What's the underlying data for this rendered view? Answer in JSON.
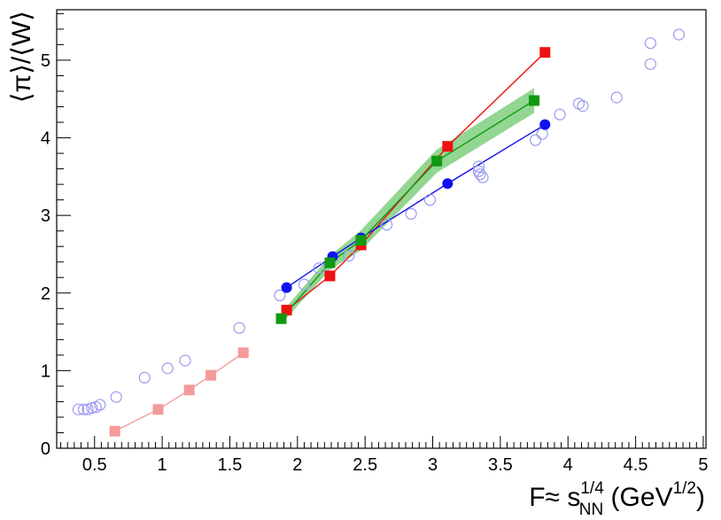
{
  "chart_data": {
    "type": "scatter",
    "xlabel": {
      "main": "F≈ s",
      "sup": "1/4",
      "sub": "NN",
      "unit_prefix": " (GeV",
      "unit_sup": "1/2",
      "unit_suffix": ")"
    },
    "ylabel": "⟨π⟩/⟨W⟩",
    "xlim": [
      0.22,
      5.02
    ],
    "ylim": [
      0,
      5.65
    ],
    "x_ticks": [
      "0.5",
      "1",
      "1.5",
      "2",
      "2.5",
      "3",
      "3.5",
      "4",
      "4.5",
      "5"
    ],
    "y_ticks": [
      "0",
      "1",
      "2",
      "3",
      "4",
      "5"
    ],
    "grid": false,
    "series": [
      {
        "marker": "open-circle",
        "color": "#9a9af0",
        "line": false,
        "points": [
          {
            "x": 0.38,
            "y": 0.5
          },
          {
            "x": 0.42,
            "y": 0.5
          },
          {
            "x": 0.45,
            "y": 0.5
          },
          {
            "x": 0.48,
            "y": 0.52
          },
          {
            "x": 0.51,
            "y": 0.53
          },
          {
            "x": 0.54,
            "y": 0.56
          },
          {
            "x": 0.66,
            "y": 0.66
          },
          {
            "x": 0.87,
            "y": 0.91
          },
          {
            "x": 1.04,
            "y": 1.03
          },
          {
            "x": 1.17,
            "y": 1.13
          },
          {
            "x": 1.57,
            "y": 1.55
          },
          {
            "x": 1.87,
            "y": 1.97
          },
          {
            "x": 2.05,
            "y": 2.11
          },
          {
            "x": 2.16,
            "y": 2.32
          },
          {
            "x": 2.38,
            "y": 2.48
          },
          {
            "x": 2.66,
            "y": 2.88
          },
          {
            "x": 2.84,
            "y": 3.02
          },
          {
            "x": 2.98,
            "y": 3.2
          },
          {
            "x": 3.34,
            "y": 3.63
          },
          {
            "x": 3.34,
            "y": 3.57
          },
          {
            "x": 3.35,
            "y": 3.53
          },
          {
            "x": 3.37,
            "y": 3.49
          },
          {
            "x": 3.76,
            "y": 3.97
          },
          {
            "x": 3.81,
            "y": 4.05
          },
          {
            "x": 3.94,
            "y": 4.3
          },
          {
            "x": 4.08,
            "y": 4.44
          },
          {
            "x": 4.11,
            "y": 4.41
          },
          {
            "x": 4.36,
            "y": 4.52
          },
          {
            "x": 4.61,
            "y": 5.22
          },
          {
            "x": 4.61,
            "y": 4.95
          },
          {
            "x": 4.82,
            "y": 5.33
          }
        ]
      },
      {
        "marker": "filled-square",
        "color": "#f59a9a",
        "line": true,
        "points": [
          {
            "x": 0.65,
            "y": 0.22
          },
          {
            "x": 0.97,
            "y": 0.5
          },
          {
            "x": 1.2,
            "y": 0.75
          },
          {
            "x": 1.36,
            "y": 0.94
          },
          {
            "x": 1.6,
            "y": 1.23
          }
        ]
      },
      {
        "marker": "filled-square",
        "color": "#ee1111",
        "line": true,
        "points": [
          {
            "x": 1.92,
            "y": 1.78
          },
          {
            "x": 2.24,
            "y": 2.22
          },
          {
            "x": 2.47,
            "y": 2.62
          },
          {
            "x": 3.11,
            "y": 3.89
          },
          {
            "x": 3.83,
            "y": 5.1
          }
        ]
      },
      {
        "marker": "filled-circle",
        "color": "#1111ee",
        "line": true,
        "points": [
          {
            "x": 1.92,
            "y": 2.07
          },
          {
            "x": 2.26,
            "y": 2.47
          },
          {
            "x": 2.47,
            "y": 2.71
          },
          {
            "x": 3.11,
            "y": 3.41
          },
          {
            "x": 3.83,
            "y": 4.17
          }
        ]
      },
      {
        "marker": "filled-square",
        "color": "#119911",
        "line": true,
        "band_color": "#7fcf7f",
        "points": [
          {
            "x": 1.88,
            "y": 1.67
          },
          {
            "x": 2.24,
            "y": 2.39
          },
          {
            "x": 2.47,
            "y": 2.68
          },
          {
            "x": 3.03,
            "y": 3.7
          },
          {
            "x": 3.75,
            "y": 4.48
          }
        ],
        "band": [
          {
            "x": 1.88,
            "lo": 1.6,
            "hi": 1.74
          },
          {
            "x": 2.24,
            "lo": 2.3,
            "hi": 2.48
          },
          {
            "x": 2.47,
            "lo": 2.55,
            "hi": 2.81
          },
          {
            "x": 3.03,
            "lo": 3.55,
            "hi": 3.85
          },
          {
            "x": 3.75,
            "lo": 4.32,
            "hi": 4.64
          }
        ]
      }
    ]
  }
}
